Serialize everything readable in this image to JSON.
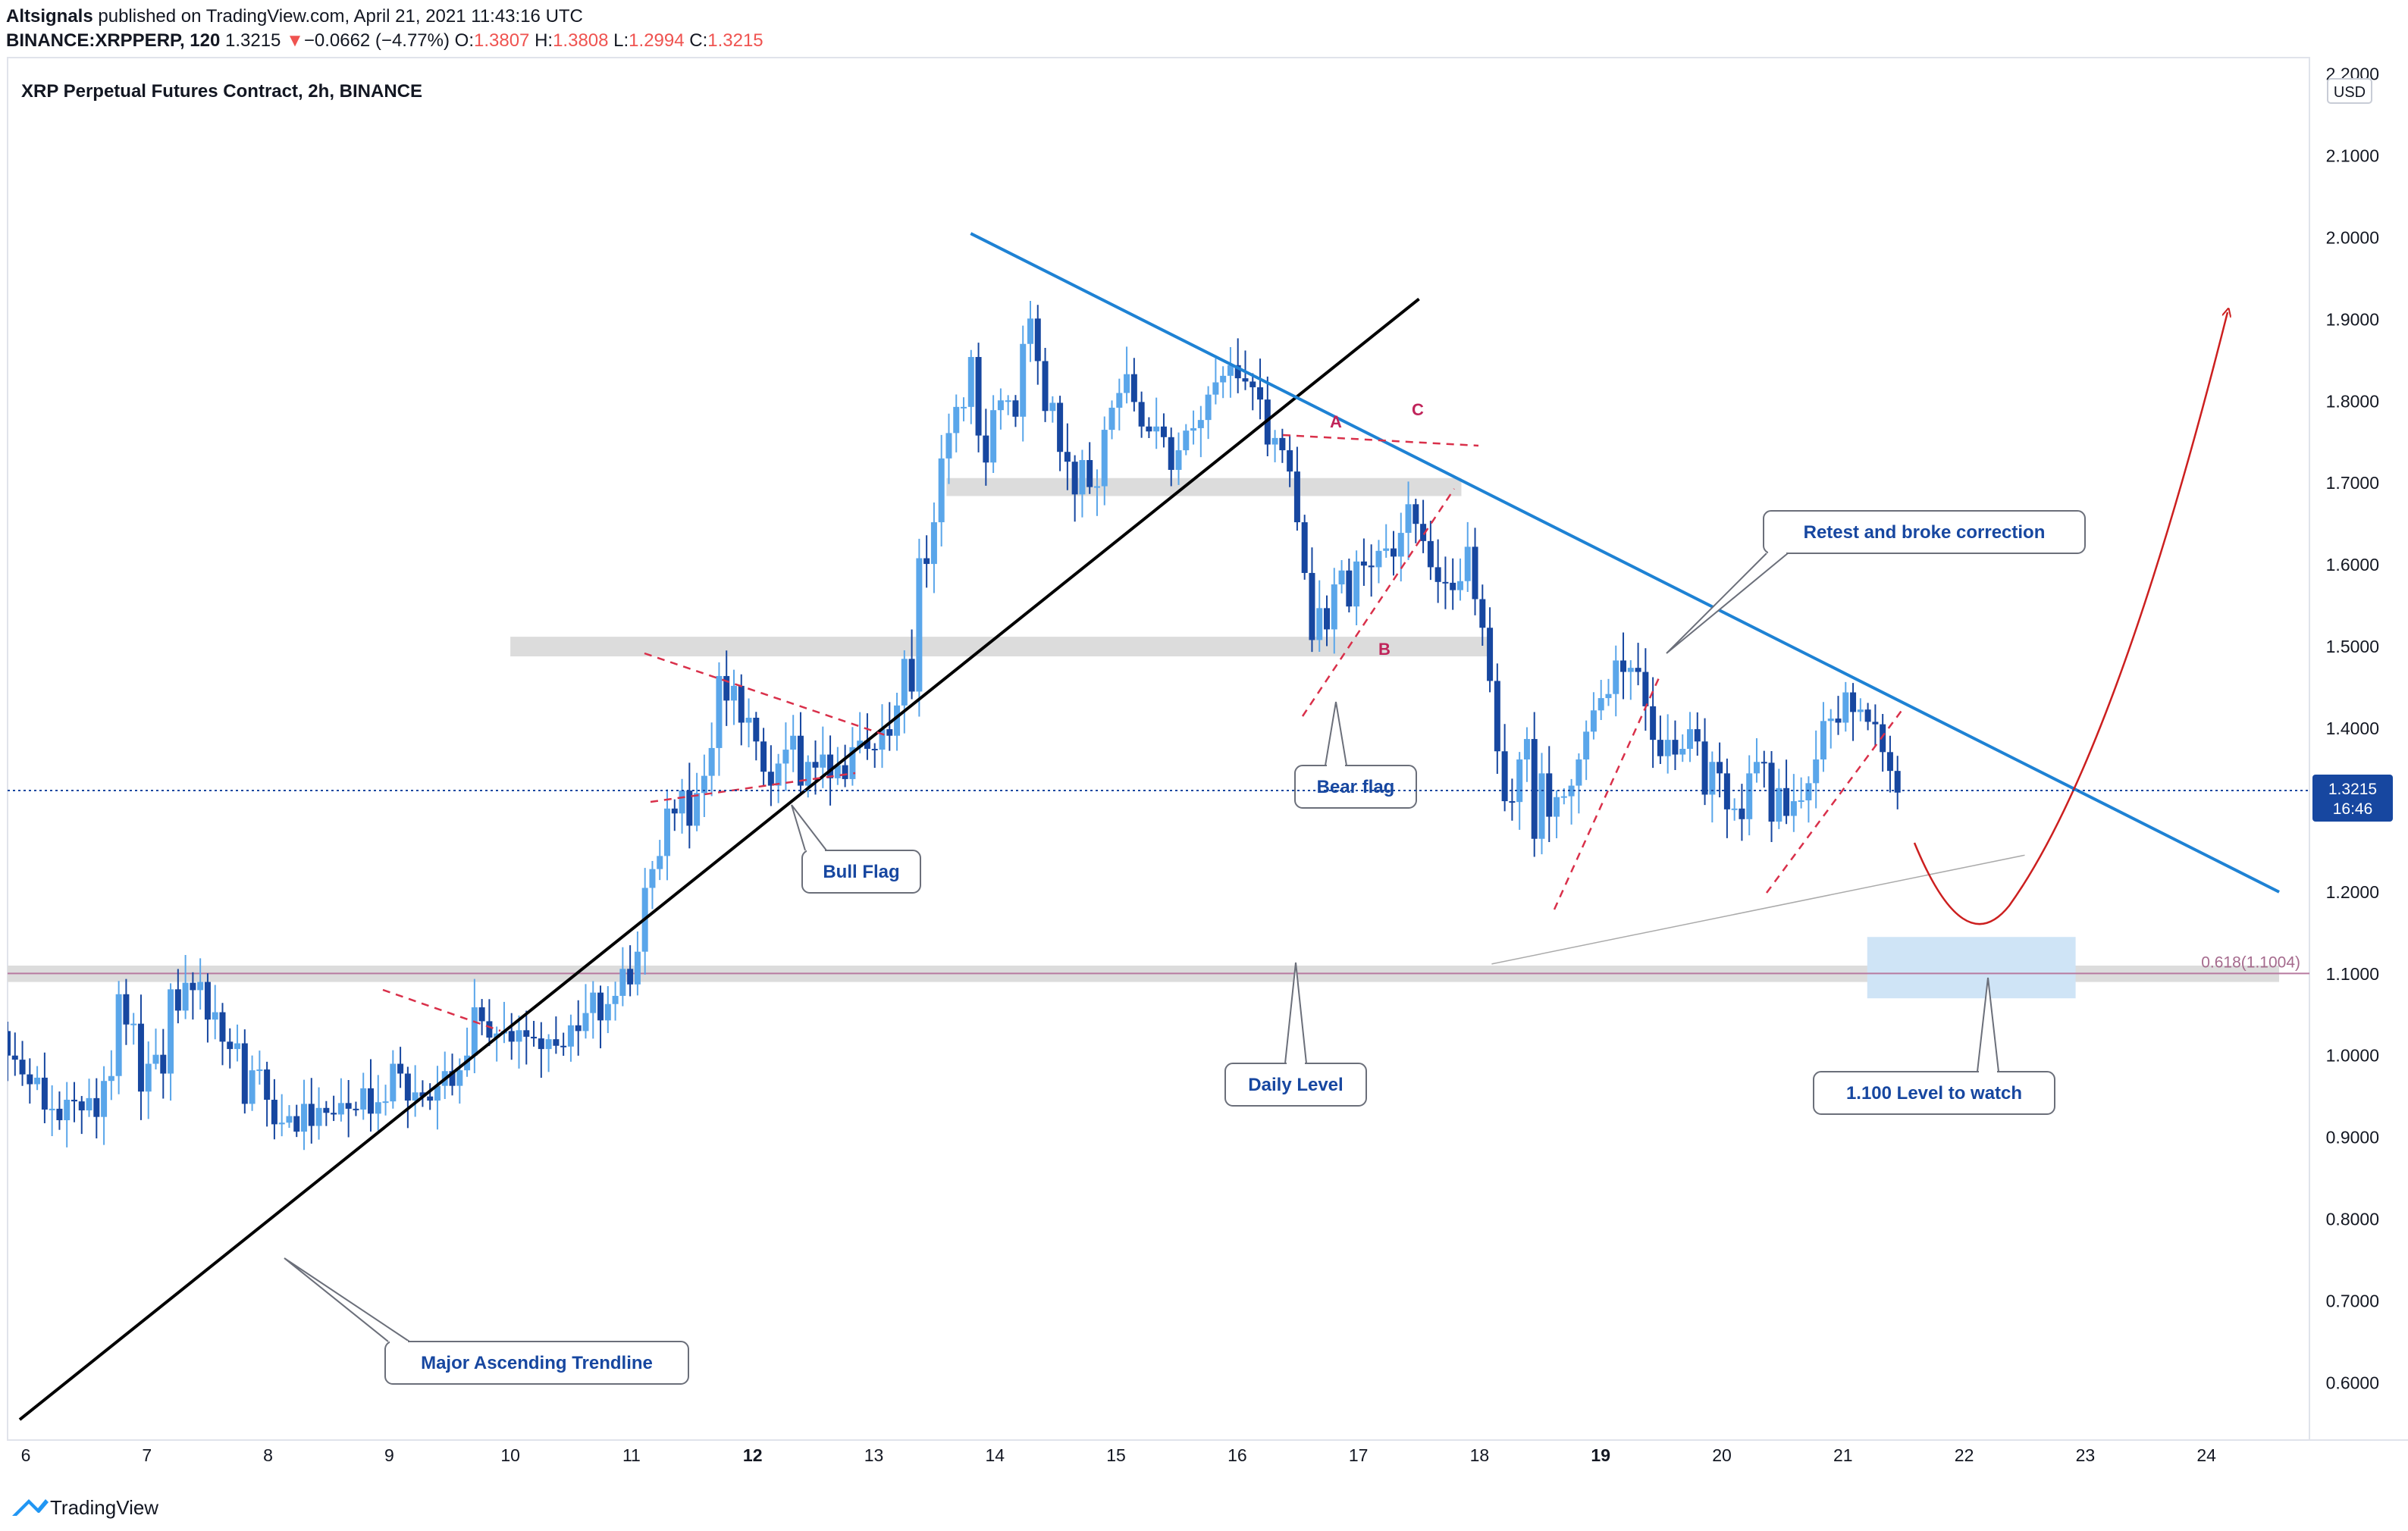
{
  "header": {
    "publisher": "Altsignals",
    "published_text": " published on TradingView.com, April 21, 2021 11:43:16 UTC",
    "symbol_line": "BINANCE:XRPPERP, 120",
    "last": "1.3215",
    "change_arrow": "▼",
    "change": "−0.0662 (−4.77%)",
    "o_label": "O:",
    "o_val": "1.3807",
    "h_label": "H:",
    "h_val": "1.3808",
    "l_label": "L:",
    "l_val": "1.2994",
    "c_label": "C:",
    "c_val": "1.3215"
  },
  "chart_title": "XRP Perpetual Futures Contract, 2h, BINANCE",
  "currency": "USD",
  "price_tag": {
    "price": "1.3215",
    "countdown": "16:46"
  },
  "fib_label": "0.618(1.1004)",
  "footer": {
    "logo_text": "TradingView"
  },
  "annotations": {
    "major_trendline": "Major Ascending Trendline",
    "bull_flag": "Bull Flag",
    "bear_flag": "Bear flag",
    "daily_level": "Daily Level",
    "retest": "Retest and broke correction",
    "level_watch": "1.100 Level to watch",
    "wave_a": "A",
    "wave_b": "B",
    "wave_c": "C"
  },
  "colors": {
    "up": "#5aa6ea",
    "down": "#1747a0",
    "trend_blue": "#1e82d4",
    "trend_black": "#000000",
    "flag_red": "#d9304a",
    "projection_red": "#cc1f1f",
    "zone_gray": "#dcdcdc",
    "watch_zone": "#cfe4f6",
    "fib_line": "#b87aa0"
  },
  "chart_data": {
    "type": "candlestick",
    "title": "XRP Perpetual Futures Contract, 2h, BINANCE",
    "ylim": [
      0.53,
      2.22
    ],
    "y_ticks": [
      "0.6000",
      "0.7000",
      "0.8000",
      "0.9000",
      "1.0000",
      "1.1000",
      "1.2000",
      "1.3000",
      "1.4000",
      "1.5000",
      "1.6000",
      "1.7000",
      "1.8000",
      "1.9000",
      "2.0000",
      "2.1000",
      "2.2000"
    ],
    "x_range_days": [
      5.85,
      24.85
    ],
    "x_ticks": [
      "6",
      "7",
      "8",
      "9",
      "10",
      "11",
      "12",
      "13",
      "14",
      "15",
      "16",
      "17",
      "18",
      "19",
      "20",
      "21",
      "22",
      "23",
      "24"
    ],
    "bold_x_ticks": [
      "12",
      "19"
    ],
    "current_price": 1.3215,
    "support_zones": [
      {
        "from_day": 10.0,
        "to_day": 18.1,
        "low": 1.488,
        "high": 1.512
      },
      {
        "from_day": 13.6,
        "to_day": 17.85,
        "low": 1.684,
        "high": 1.706
      },
      {
        "from_day": 5.85,
        "to_day": 24.6,
        "low": 1.09,
        "high": 1.11
      }
    ],
    "watch_zone": {
      "from_day": 21.2,
      "to_day": 22.92,
      "low": 1.07,
      "high": 1.145
    },
    "fib_level": {
      "ratio": "0.618",
      "price": 1.1004
    },
    "trendlines": [
      {
        "name": "major-ascending",
        "from": [
          5.95,
          0.555
        ],
        "to": [
          17.5,
          1.925
        ]
      },
      {
        "name": "descending",
        "from": [
          13.8,
          2.005
        ],
        "to": [
          24.6,
          1.2
        ]
      },
      {
        "name": "lower-support",
        "from": [
          18.1,
          1.112
        ],
        "to": [
          22.5,
          1.245
        ]
      }
    ],
    "candles_ohlc_close": [
      1.0,
      0.995,
      0.977,
      0.965,
      0.973,
      0.934,
      0.935,
      0.921,
      0.946,
      0.944,
      0.933,
      0.948,
      0.925,
      0.969,
      0.975,
      1.075,
      1.038,
      1.039,
      0.956,
      0.99,
      1.001,
      0.978,
      1.081,
      1.055,
      1.089,
      1.08,
      1.09,
      1.044,
      1.053,
      1.017,
      1.008,
      1.015,
      0.941,
      0.982,
      0.983,
      0.946,
      0.916,
      0.918,
      0.926,
      0.907,
      0.941,
      0.914,
      0.936,
      0.93,
      0.928,
      0.942,
      0.935,
      0.934,
      0.96,
      0.929,
      0.943,
      0.944,
      0.99,
      0.978,
      0.945,
      0.955,
      0.95,
      0.945,
      0.963,
      0.981,
      0.963,
      0.982,
      1.0,
      1.059,
      1.042,
      1.022,
      1.027,
      1.03,
      1.017,
      1.031,
      1.023,
      1.021,
      1.008,
      1.02,
      1.012,
      1.011,
      1.037,
      1.03,
      1.052,
      1.077,
      1.043,
      1.063,
      1.073,
      1.106,
      1.087,
      1.127,
      1.205,
      1.228,
      1.244,
      1.302,
      1.296,
      1.324,
      1.281,
      1.321,
      1.342,
      1.376,
      1.464,
      1.434,
      1.452,
      1.407,
      1.413,
      1.384,
      1.347,
      1.33,
      1.357,
      1.374,
      1.391,
      1.33,
      1.359,
      1.352,
      1.368,
      1.339,
      1.355,
      1.338,
      1.377,
      1.385,
      1.375,
      1.374,
      1.399,
      1.391,
      1.428,
      1.485,
      1.445,
      1.608,
      1.601,
      1.652,
      1.73,
      1.761,
      1.793,
      1.793,
      1.854,
      1.758,
      1.725,
      1.789,
      1.801,
      1.801,
      1.781,
      1.87,
      1.901,
      1.849,
      1.788,
      1.798,
      1.738,
      1.726,
      1.686,
      1.728,
      1.695,
      1.696,
      1.765,
      1.792,
      1.81,
      1.833,
      1.799,
      1.769,
      1.763,
      1.769,
      1.756,
      1.716,
      1.74,
      1.764,
      1.767,
      1.777,
      1.808,
      1.823,
      1.831,
      1.844,
      1.828,
      1.824,
      1.817,
      1.802,
      1.747,
      1.755,
      1.74,
      1.714,
      1.652,
      1.59,
      1.508,
      1.547,
      1.521,
      1.576,
      1.593,
      1.549,
      1.604,
      1.599,
      1.597,
      1.617,
      1.62,
      1.61,
      1.639,
      1.674,
      1.65,
      1.629,
      1.597,
      1.579,
      1.578,
      1.569,
      1.58,
      1.622,
      1.558,
      1.523,
      1.458,
      1.372,
      1.311,
      1.31,
      1.362,
      1.387,
      1.265,
      1.345,
      1.292,
      1.316,
      1.317,
      1.33,
      1.362,
      1.396,
      1.422,
      1.437,
      1.442,
      1.483,
      1.469,
      1.474,
      1.469,
      1.427,
      1.386,
      1.366,
      1.386,
      1.368,
      1.375,
      1.399,
      1.384,
      1.319,
      1.359,
      1.345,
      1.301,
      1.302,
      1.289,
      1.345,
      1.359,
      1.358,
      1.286,
      1.327,
      1.293,
      1.311,
      1.312,
      1.333,
      1.362,
      1.409,
      1.412,
      1.407,
      1.444,
      1.42,
      1.423,
      1.408,
      1.405,
      1.371,
      1.348,
      1.3215
    ]
  }
}
